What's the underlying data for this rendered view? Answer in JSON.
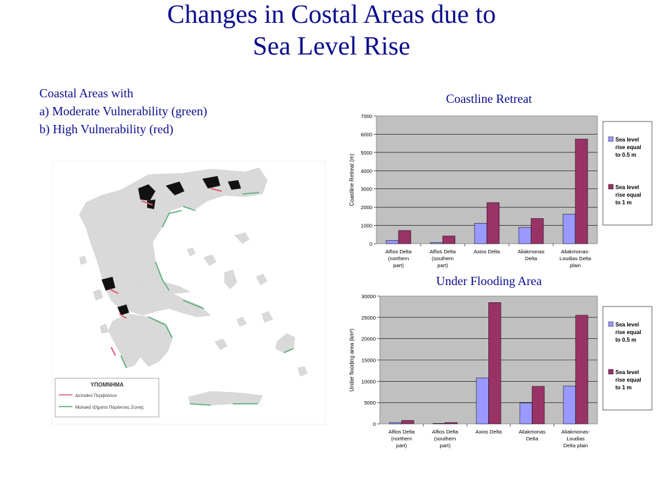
{
  "slide": {
    "title_line1": "Changes in Costal Areas due to",
    "title_line2": "Sea Level Rise",
    "desc_line1": "Coastal Areas with",
    "desc_line2": "a) Moderate Vulnerability (green)",
    "desc_line3": "b) High Vulnerability (red)"
  },
  "map": {
    "legend_title": "ΥΠΟΜΝΗΜΑ",
    "legend_items": [
      {
        "label": "Δελταϊκό Περιβάλλον",
        "color": "#e0607a"
      },
      {
        "label": "Μαλακά Ιζήματα Παράκτιας Ζώνης",
        "color": "#55aa77"
      }
    ]
  },
  "colors": {
    "series1": "#9999ff",
    "series2": "#993366",
    "plot_bg": "#c0c0c0",
    "title": "#0a0a8c"
  },
  "chart_data": [
    {
      "type": "bar",
      "title": "Coastline Retreat",
      "ylabel": "Coastline Retreat (m)",
      "xlabel": "",
      "ylim": [
        0,
        7000
      ],
      "yticks": [
        "0",
        "1000",
        "2000",
        "3000",
        "4000",
        "5000",
        "6000",
        "7000"
      ],
      "categories": [
        [
          "Alfios Delta",
          "(northern",
          "part)"
        ],
        [
          "Alfios Delta",
          "(southern",
          "part)"
        ],
        [
          "Axios Delta"
        ],
        [
          "Aliakmonas",
          "Delta"
        ],
        [
          "Aliakmonas-",
          "Loudias Delta",
          "plain"
        ]
      ],
      "series": [
        {
          "name": [
            "Sea level",
            "rise equal",
            "to 0.5 m"
          ],
          "values": [
            180,
            60,
            1120,
            900,
            1620
          ]
        },
        {
          "name": [
            "Sea level",
            "rise equal",
            "to 1 m"
          ],
          "values": [
            720,
            420,
            2250,
            1380,
            5730
          ]
        }
      ],
      "grid": true,
      "legend": "right"
    },
    {
      "type": "bar",
      "title": "Under Flooding Area",
      "ylabel": "Under flooding area (km²)",
      "xlabel": "",
      "ylim": [
        0,
        30000
      ],
      "yticks": [
        "0",
        "5000",
        "10000",
        "15000",
        "20000",
        "25000",
        "30000"
      ],
      "categories": [
        [
          "Alfios Delta",
          "(northern",
          "part)"
        ],
        [
          "Alfios Delta",
          "(southern",
          "part)"
        ],
        [
          "Axios Delta"
        ],
        [
          "Aliakmonas",
          "Delta"
        ],
        [
          "Aliakmonas-",
          "Loudias",
          "Delta plain"
        ]
      ],
      "series": [
        {
          "name": [
            "Sea level",
            "rise equal",
            "to 0.5 m"
          ],
          "values": [
            300,
            100,
            10800,
            4900,
            8900
          ]
        },
        {
          "name": [
            "Sea level",
            "rise equal",
            "to 1 m"
          ],
          "values": [
            800,
            300,
            28500,
            8800,
            25500
          ]
        }
      ],
      "grid": true,
      "legend": "right"
    }
  ]
}
